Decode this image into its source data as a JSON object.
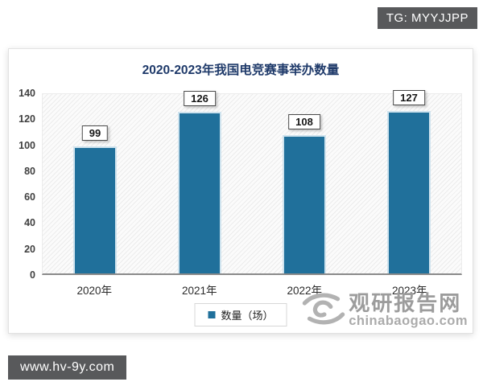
{
  "overlays": {
    "tg_badge": "TG: MYYJJPP",
    "site_badge": "www.hv-9y.com",
    "badge_bg": "#58595b"
  },
  "watermark": {
    "logo": "swirl-logo",
    "name": "观研报告网",
    "domain": "chinabaogao.com"
  },
  "chart_data": {
    "type": "bar",
    "title": "2020-2023年我国电竞赛事举办数量",
    "categories": [
      "2020年",
      "2021年",
      "2022年",
      "2023年"
    ],
    "values": [
      99,
      126,
      108,
      127
    ],
    "legend": [
      "数量（场）"
    ],
    "xlabel": "",
    "ylabel": "",
    "ylim": [
      0,
      140
    ],
    "yticks": [
      0,
      20,
      40,
      60,
      80,
      100,
      120,
      140
    ],
    "grid": false,
    "legend_position": "bottom",
    "bar_color": "#20709b",
    "title_color": "#1f3a6a",
    "plot_background": "hatched-diagonal"
  }
}
